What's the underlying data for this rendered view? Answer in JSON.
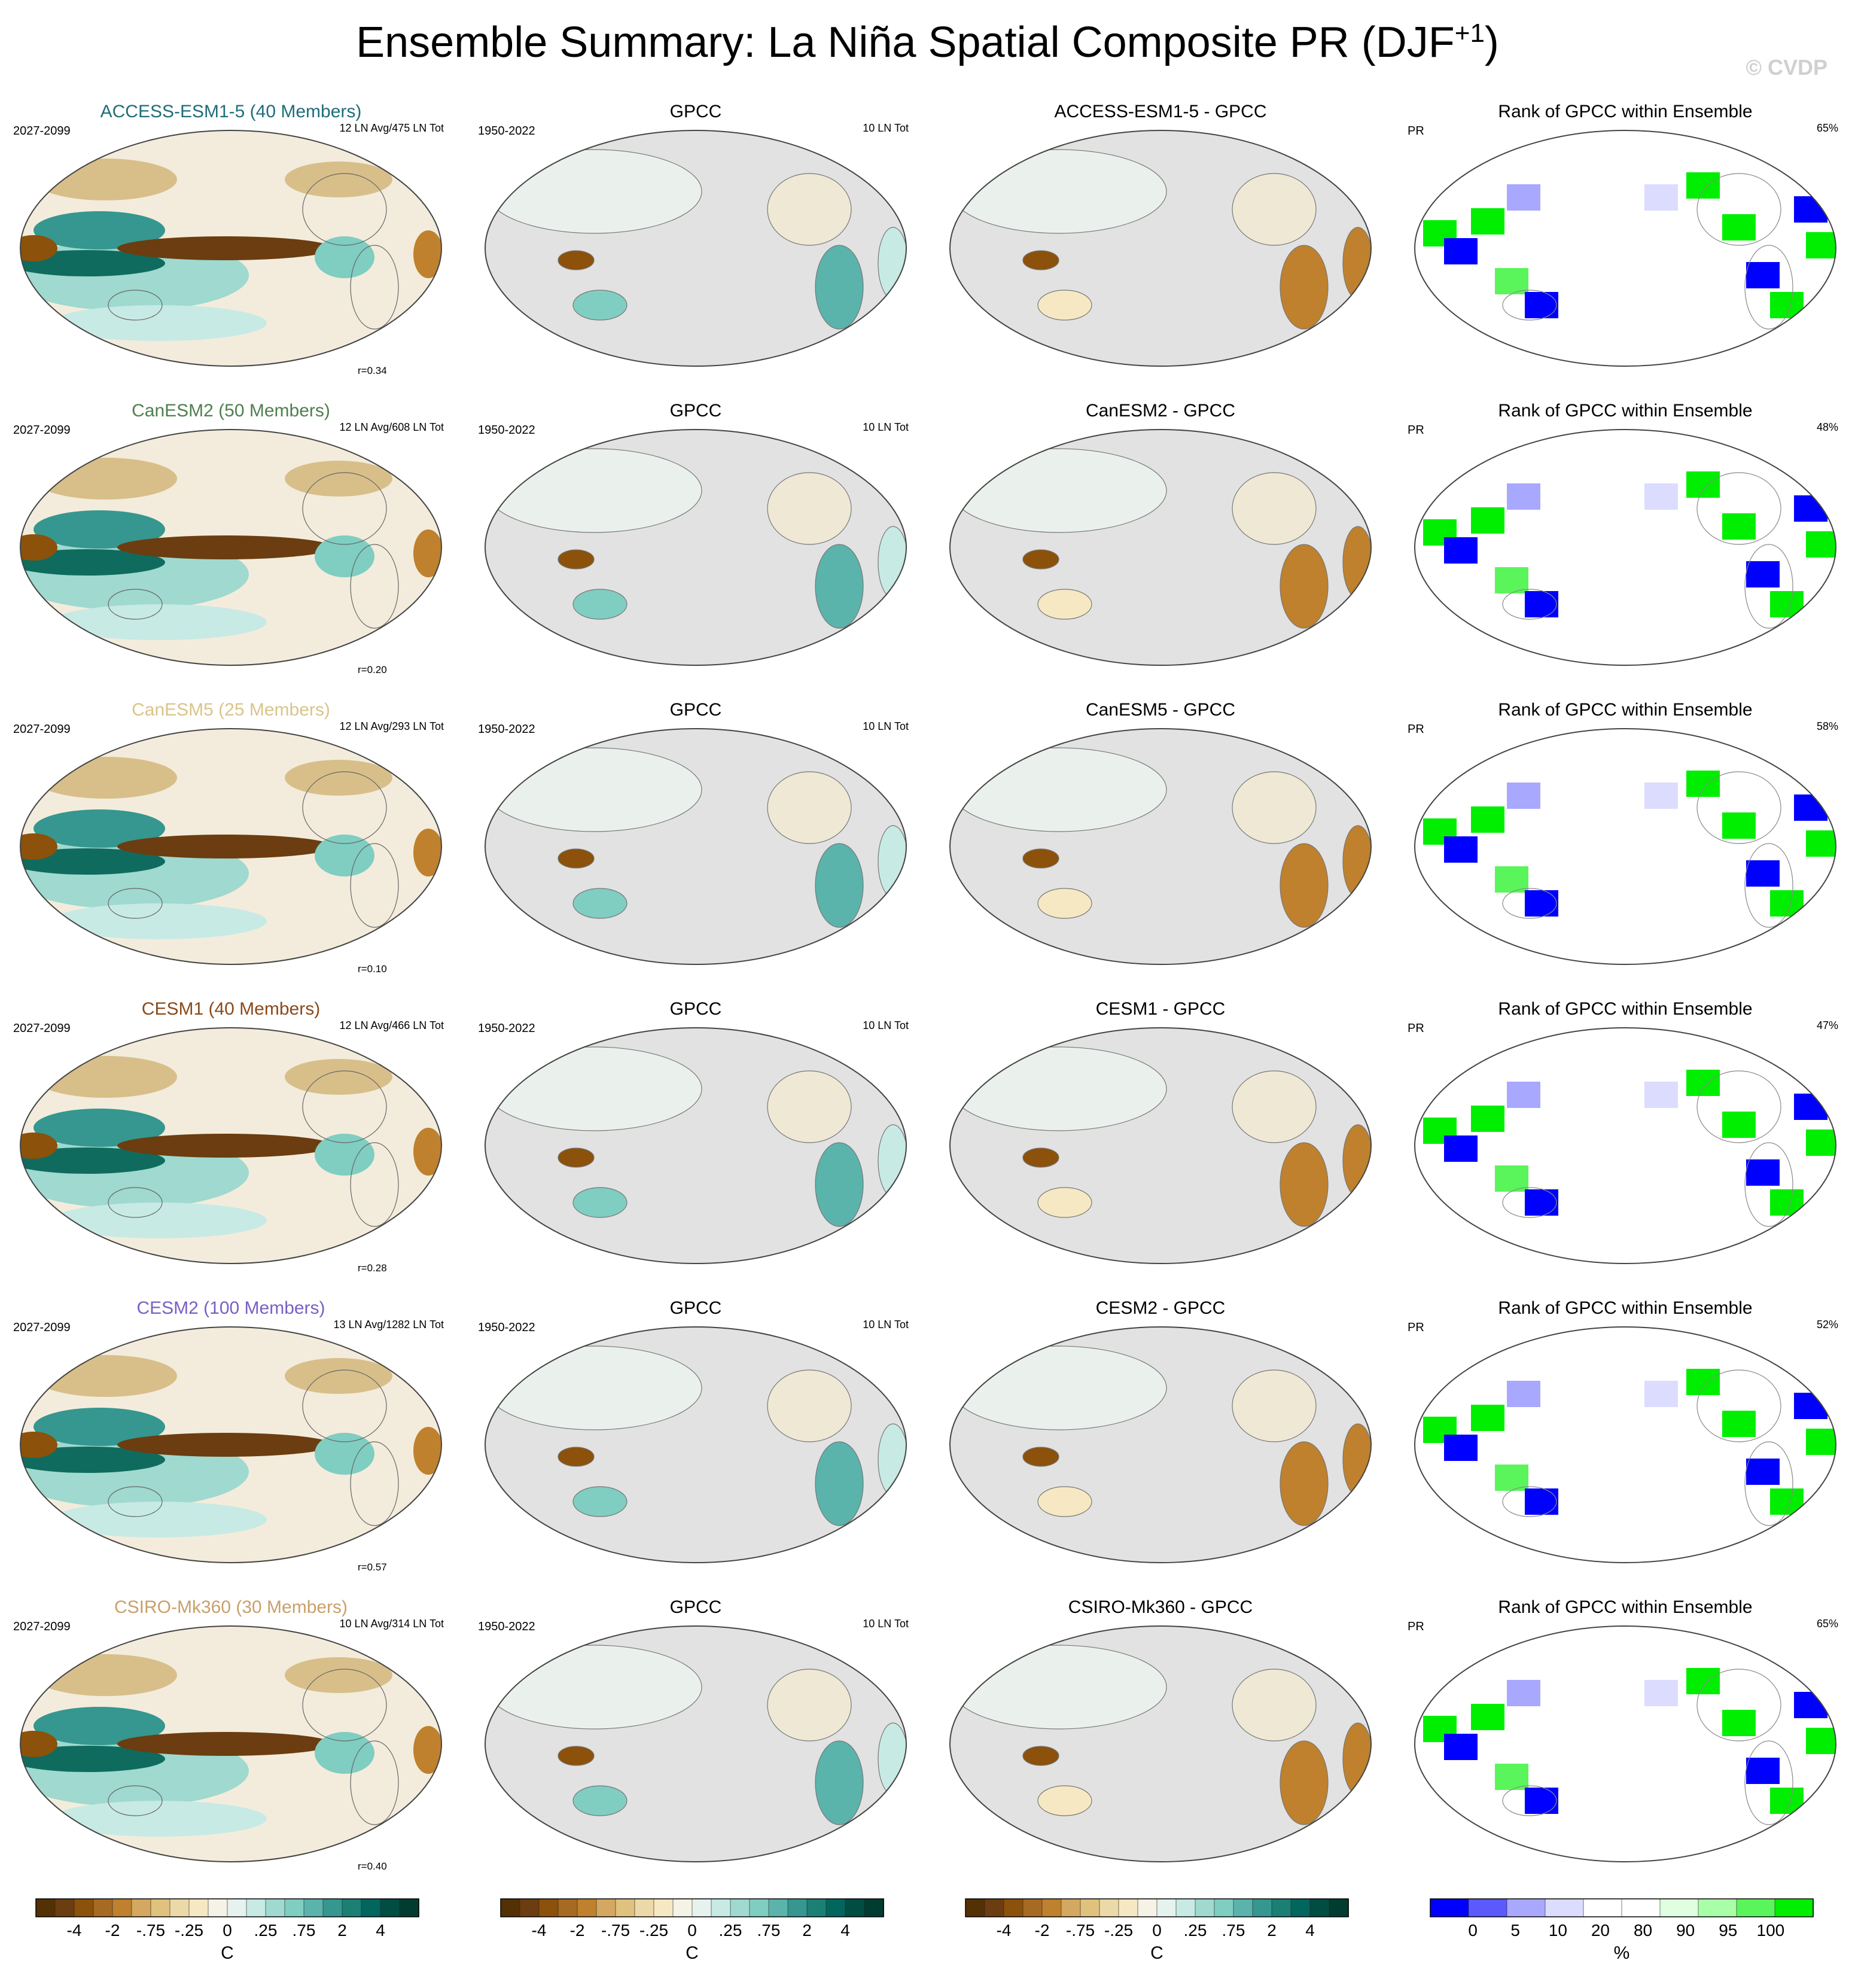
{
  "header": {
    "title": "Ensemble Summary: La Niña Spatial Composite PR (DJF",
    "title_sup": "+1",
    "title_close": ")",
    "watermark": "© CVDP"
  },
  "colors": {
    "brown_dark": "#6b3d10",
    "teal_dark": "#0f6b5e",
    "ocean_gray": "#e2e2e2",
    "rank_blue": "#0000ff",
    "rank_green": "#00ee00"
  },
  "rows": [
    {
      "model": "ACCESS-ESM1-5 (40 Members)",
      "model_color": "#1f6e7a",
      "years": "2027-2099",
      "ln_info": "12 LN Avg/475 LN Tot",
      "corr": "r=0.34",
      "obs_title": "GPCC",
      "obs_years": "1950-2022",
      "obs_info": "10 LN Tot",
      "diff_title": "ACCESS-ESM1-5 - GPCC",
      "rank_title": "Rank of GPCC within Ensemble",
      "rank_var": "PR",
      "rank_pct": "65%"
    },
    {
      "model": "CanESM2 (50 Members)",
      "model_color": "#4f7f4f",
      "years": "2027-2099",
      "ln_info": "12 LN Avg/608 LN Tot",
      "corr": "r=0.20",
      "obs_title": "GPCC",
      "obs_years": "1950-2022",
      "obs_info": "10 LN Tot",
      "diff_title": "CanESM2 - GPCC",
      "rank_title": "Rank of GPCC within Ensemble",
      "rank_var": "PR",
      "rank_pct": "48%"
    },
    {
      "model": "CanESM5 (25 Members)",
      "model_color": "#d9c48a",
      "years": "2027-2099",
      "ln_info": "12 LN Avg/293 LN Tot",
      "corr": "r=0.10",
      "obs_title": "GPCC",
      "obs_years": "1950-2022",
      "obs_info": "10 LN Tot",
      "diff_title": "CanESM5 - GPCC",
      "rank_title": "Rank of GPCC within Ensemble",
      "rank_var": "PR",
      "rank_pct": "58%"
    },
    {
      "model": "CESM1 (40 Members)",
      "model_color": "#8a4a1a",
      "years": "2027-2099",
      "ln_info": "12 LN Avg/466 LN Tot",
      "corr": "r=0.28",
      "obs_title": "GPCC",
      "obs_years": "1950-2022",
      "obs_info": "10 LN Tot",
      "diff_title": "CESM1 - GPCC",
      "rank_title": "Rank of GPCC within Ensemble",
      "rank_var": "PR",
      "rank_pct": "47%"
    },
    {
      "model": "CESM2 (100 Members)",
      "model_color": "#7a5fc4",
      "years": "2027-2099",
      "ln_info": "13 LN Avg/1282 LN Tot",
      "corr": "r=0.57",
      "obs_title": "GPCC",
      "obs_years": "1950-2022",
      "obs_info": "10 LN Tot",
      "diff_title": "CESM2 - GPCC",
      "rank_title": "Rank of GPCC within Ensemble",
      "rank_var": "PR",
      "rank_pct": "52%"
    },
    {
      "model": "CSIRO-Mk360 (30 Members)",
      "model_color": "#c9a06a",
      "years": "2027-2099",
      "ln_info": "10 LN Avg/314 LN Tot",
      "corr": "r=0.40",
      "obs_title": "GPCC",
      "obs_years": "1950-2022",
      "obs_info": "10 LN Tot",
      "diff_title": "CSIRO-Mk360 - GPCC",
      "rank_title": "Rank of GPCC within Ensemble",
      "rank_var": "PR",
      "rank_pct": "65%"
    }
  ],
  "colorbars": {
    "precip": {
      "colors": [
        "#543005",
        "#6b3d10",
        "#8c510a",
        "#a66a22",
        "#bf812d",
        "#d4a860",
        "#dfc27d",
        "#ecd9a8",
        "#f6e8c3",
        "#f5f2e6",
        "#e6f2ee",
        "#c7eae5",
        "#9fd9cf",
        "#80cdc1",
        "#5ab4ac",
        "#35978f",
        "#1b7f74",
        "#01665e",
        "#004d43",
        "#003c30"
      ],
      "ticks": [
        "-4",
        "-2",
        "-.75",
        "-.25",
        "0",
        ".25",
        ".75",
        "2",
        "4"
      ],
      "unit": "C"
    },
    "rank": {
      "colors": [
        "#0000ff",
        "#5a5aff",
        "#a8a8ff",
        "#dcdcff",
        "#ffffff",
        "#ffffff",
        "#e0ffe0",
        "#a8ffa8",
        "#5af55a",
        "#00ee00"
      ],
      "ticks": [
        "0",
        "5",
        "10",
        "20",
        "80",
        "90",
        "95",
        "100"
      ],
      "unit": "%"
    }
  }
}
